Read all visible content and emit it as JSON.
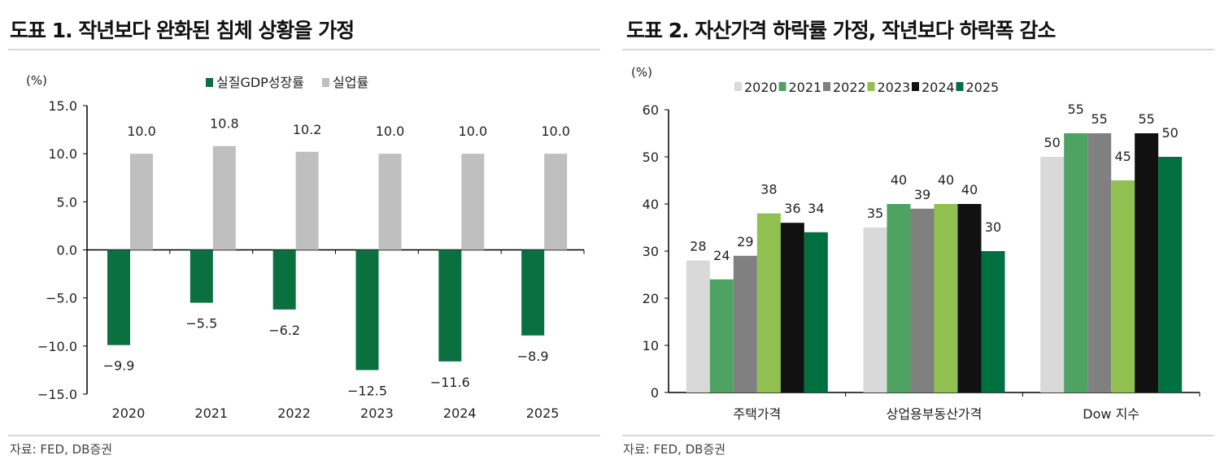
{
  "chart_data": [
    {
      "type": "bar",
      "title": "도표 1. 작년보다 완화된 침체 상황을 가정",
      "ylabel": "(%)",
      "categories": [
        "2020",
        "2021",
        "2022",
        "2023",
        "2024",
        "2025"
      ],
      "series": [
        {
          "name": "실질GDP성장률",
          "color": "#0b7040",
          "values": [
            -9.9,
            -5.5,
            -6.2,
            -12.5,
            -11.6,
            -8.9
          ],
          "labels": [
            "-9.9",
            "-5.5",
            "-6.2",
            "-12.5",
            "-11.6",
            "-8.9"
          ]
        },
        {
          "name": "실업률",
          "color": "#bfbfbf",
          "values": [
            10.0,
            10.8,
            10.2,
            10.0,
            10.0,
            10.0
          ],
          "labels": [
            "10.0",
            "10.8",
            "10.2",
            "10.0",
            "10.0",
            "10.0"
          ]
        }
      ],
      "ylim": [
        -15,
        15
      ],
      "yticks": [
        "15.0",
        "10.0",
        "5.0",
        "0.0",
        "-5.0",
        "-10.0",
        "-15.0"
      ],
      "ytick_values": [
        15,
        10,
        5,
        0,
        -5,
        -10,
        -15
      ],
      "legend": "top",
      "grid": false,
      "source": "자료: FED, DB증권"
    },
    {
      "type": "bar",
      "title": "도표 2. 자산가격 하락률 가정, 작년보다 하락폭 감소",
      "ylabel": "(%)",
      "categories": [
        "주택가격",
        "상업용부동산가격",
        "Dow 지수"
      ],
      "series": [
        {
          "name": "2020",
          "color": "#d9d9d9",
          "values": [
            28,
            35,
            50
          ]
        },
        {
          "name": "2021",
          "color": "#4ea363",
          "values": [
            24,
            40,
            55
          ]
        },
        {
          "name": "2022",
          "color": "#808080",
          "values": [
            29,
            39,
            55
          ]
        },
        {
          "name": "2023",
          "color": "#8fc050",
          "values": [
            38,
            40,
            45
          ]
        },
        {
          "name": "2024",
          "color": "#111111",
          "values": [
            36,
            40,
            55
          ]
        },
        {
          "name": "2025",
          "color": "#007040",
          "values": [
            34,
            30,
            50
          ]
        }
      ],
      "ylim": [
        0,
        60
      ],
      "yticks": [
        "60",
        "50",
        "40",
        "30",
        "20",
        "10",
        "0"
      ],
      "ytick_values": [
        60,
        50,
        40,
        30,
        20,
        10,
        0
      ],
      "legend": "top",
      "grid": false,
      "source": "자료: FED, DB증권"
    }
  ]
}
